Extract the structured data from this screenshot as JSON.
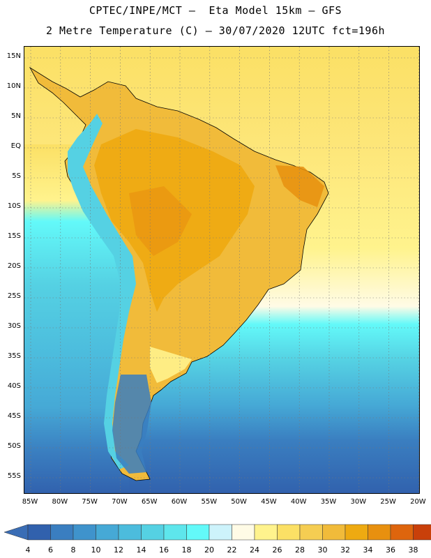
{
  "header": {
    "line1": "CPTEC/INPE/MCT –  Eta Model 15km – GFS",
    "line2": "2 Metre Temperature (C) – 30/07/2020 12UTC fct=196h"
  },
  "map": {
    "lat_labels": [
      "15N",
      "10N",
      "5N",
      "EQ",
      "5S",
      "10S",
      "15S",
      "20S",
      "25S",
      "30S",
      "35S",
      "40S",
      "45S",
      "50S",
      "55S"
    ],
    "lon_labels": [
      "85W",
      "80W",
      "75W",
      "70W",
      "65W",
      "60W",
      "55W",
      "50W",
      "45W",
      "40W",
      "35W",
      "30W",
      "25W",
      "20W"
    ]
  },
  "colorbar": {
    "levels": [
      "4",
      "6",
      "8",
      "10",
      "12",
      "14",
      "16",
      "18",
      "20",
      "22",
      "24",
      "26",
      "28",
      "30",
      "32",
      "34",
      "36",
      "38"
    ],
    "colors": [
      "#3161ad",
      "#3a7ec0",
      "#3f93cc",
      "#46a9d6",
      "#4cbcdd",
      "#55d1e3",
      "#5ee6ec",
      "#63f9f9",
      "#cdf3fb",
      "#fffbe6",
      "#fff38d",
      "#fbe065",
      "#f5cd52",
      "#f1bb3a",
      "#eeaa11",
      "#e8900f",
      "#de650d",
      "#c9400a",
      "#c45a1a"
    ],
    "low_color": "#3a6db5",
    "high_color": "#c45a1a"
  }
}
